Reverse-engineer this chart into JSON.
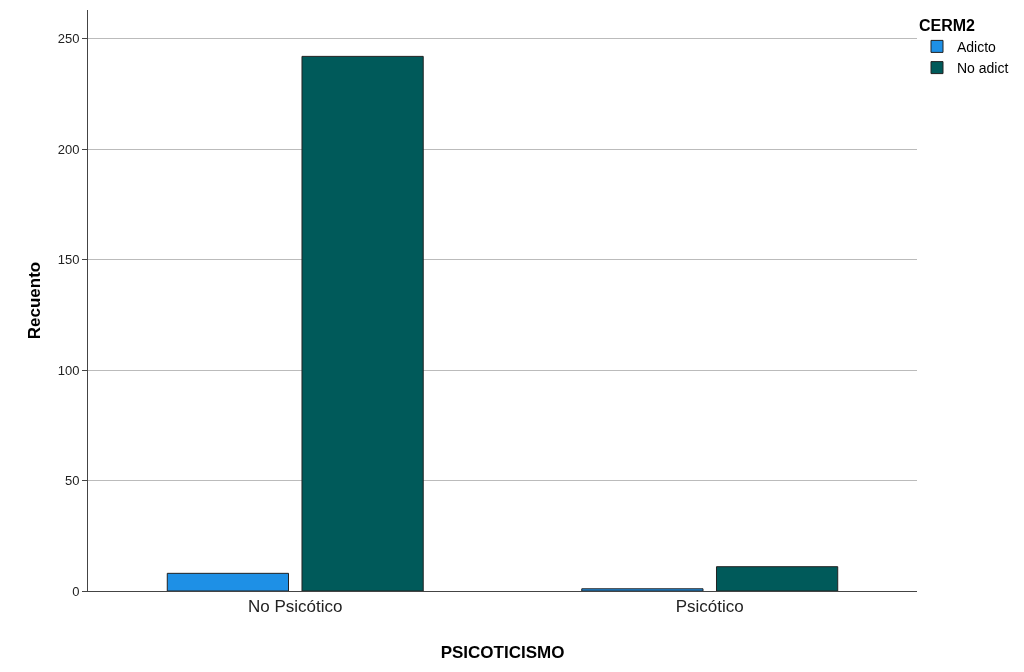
{
  "chart_data": {
    "type": "bar",
    "xlabel": "PSICOTICISMO",
    "ylabel": "Recuento",
    "legend_title": "CERM2",
    "categories": [
      "No Psicótico",
      "Psicótico"
    ],
    "series": [
      {
        "name": "Adicto",
        "color": "#1e90e6",
        "values": [
          8,
          1
        ]
      },
      {
        "name": "No adict",
        "color": "#005a5a",
        "values": [
          242,
          11
        ]
      }
    ],
    "ylim": [
      0,
      263
    ],
    "yticks": [
      0,
      50,
      100,
      150,
      200,
      250
    ],
    "grid": "y",
    "legend": "top right"
  }
}
